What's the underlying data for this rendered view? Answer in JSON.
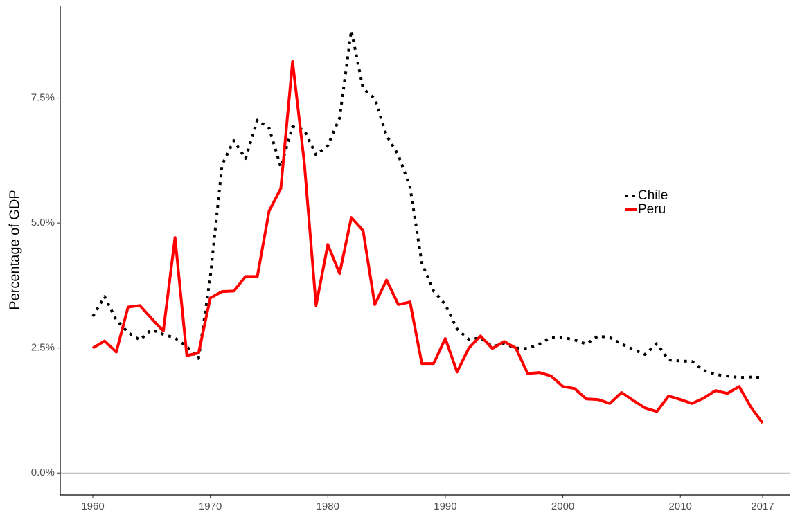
{
  "chart_data": {
    "type": "line",
    "y_label": "Percentage of GDP",
    "x": [
      1960,
      1961,
      1962,
      1963,
      1964,
      1965,
      1966,
      1967,
      1968,
      1969,
      1970,
      1971,
      1972,
      1973,
      1974,
      1975,
      1976,
      1977,
      1978,
      1979,
      1980,
      1981,
      1982,
      1983,
      1984,
      1985,
      1986,
      1987,
      1988,
      1989,
      1990,
      1991,
      1992,
      1993,
      1994,
      1995,
      1996,
      1997,
      1998,
      1999,
      2000,
      2001,
      2002,
      2003,
      2004,
      2005,
      2006,
      2007,
      2008,
      2009,
      2010,
      2011,
      2012,
      2013,
      2014,
      2015,
      2016,
      2017
    ],
    "series": [
      {
        "name": "Chile",
        "color": "#000000",
        "dash": true,
        "values": [
          3.13,
          3.53,
          3.06,
          2.81,
          2.66,
          2.87,
          2.77,
          2.7,
          2.53,
          2.29,
          3.92,
          6.16,
          6.65,
          6.29,
          7.06,
          6.9,
          6.12,
          6.93,
          6.86,
          6.36,
          6.55,
          7.1,
          8.85,
          7.69,
          7.49,
          6.75,
          6.36,
          5.72,
          4.2,
          3.64,
          3.37,
          2.88,
          2.67,
          2.7,
          2.53,
          2.59,
          2.5,
          2.49,
          2.58,
          2.71,
          2.71,
          2.66,
          2.58,
          2.74,
          2.71,
          2.58,
          2.47,
          2.37,
          2.59,
          2.26,
          2.24,
          2.23,
          2.05,
          1.97,
          1.94,
          1.91,
          1.92,
          1.91
        ]
      },
      {
        "name": "Peru",
        "color": "#ff0000",
        "dash": false,
        "values": [
          2.5,
          2.64,
          2.42,
          3.32,
          3.35,
          3.09,
          2.84,
          4.71,
          2.35,
          2.4,
          3.5,
          3.63,
          3.64,
          3.93,
          3.93,
          5.24,
          5.69,
          8.23,
          6.2,
          3.35,
          4.57,
          3.99,
          5.11,
          4.85,
          3.37,
          3.86,
          3.37,
          3.42,
          2.19,
          2.19,
          2.69,
          2.02,
          2.5,
          2.74,
          2.49,
          2.63,
          2.5,
          1.99,
          2.01,
          1.94,
          1.73,
          1.69,
          1.48,
          1.47,
          1.39,
          1.61,
          1.45,
          1.3,
          1.23,
          1.54,
          1.47,
          1.39,
          1.5,
          1.65,
          1.59,
          1.73,
          1.32,
          1.0
        ]
      }
    ],
    "xlim": [
      1957.23,
      2019.3
    ],
    "xticks": [
      1960,
      1970,
      1980,
      1990,
      2000,
      2010,
      2017
    ],
    "ylim": [
      -0.44,
      9.35
    ],
    "yticks": [
      {
        "value": 0,
        "label": "0.0%"
      },
      {
        "value": 2.5,
        "label": "2.5%"
      },
      {
        "value": 5,
        "label": "5.0%"
      },
      {
        "value": 7.5,
        "label": "7.5%"
      }
    ],
    "zero_line": true,
    "legend": "right"
  }
}
